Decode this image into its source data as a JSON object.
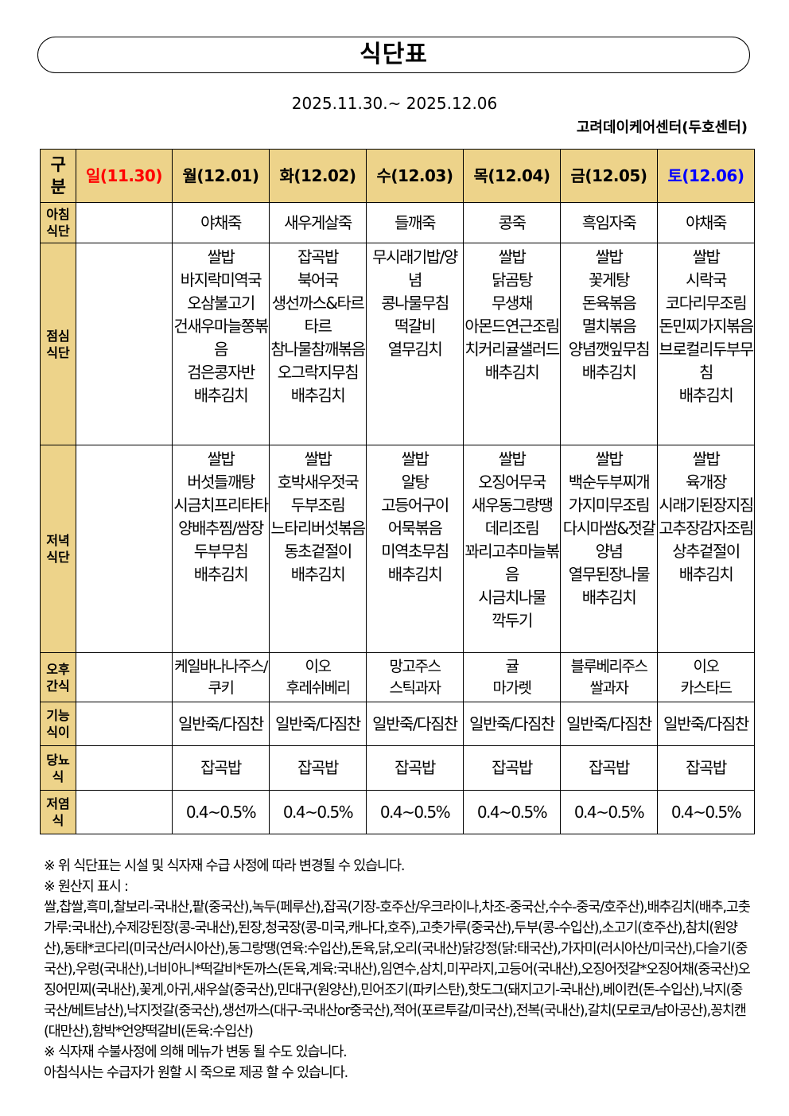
{
  "title": "식단표",
  "period": "2025.11.30.~ 2025.12.06",
  "center": "고려데이케어센터(두호센터)",
  "header": {
    "label": "구\n분",
    "days": [
      {
        "label": "일(11.30)",
        "color": "#ff0000"
      },
      {
        "label": "월(12.01)",
        "color": "#000000"
      },
      {
        "label": "화(12.02)",
        "color": "#000000"
      },
      {
        "label": "수(12.03)",
        "color": "#000000"
      },
      {
        "label": "목(12.04)",
        "color": "#000000"
      },
      {
        "label": "금(12.05)",
        "color": "#000000"
      },
      {
        "label": "토(12.06)",
        "color": "#0000ff"
      }
    ]
  },
  "rows": [
    {
      "label": "아침\n식단",
      "cells": [
        "",
        "야채죽",
        "새우게살죽",
        "들깨죽",
        "콩죽",
        "흑임자죽",
        "야채죽"
      ]
    },
    {
      "label": "점심\n식단",
      "cells": [
        "",
        "쌀밥\n바지락미역국\n오삼불고기\n건새우마늘쫑볶음\n검은콩자반\n배추김치",
        "잡곡밥\n북어국\n생선까스&타르타르\n참나물참깨볶음\n오그락지무침\n배추김치",
        "무시래기밥/양념\n콩나물무침\n떡갈비\n열무김치",
        "쌀밥\n닭곰탕\n무생채\n아몬드연근조림\n치커리귤샐러드\n배추김치",
        "쌀밥\n꽃게탕\n돈육볶음\n멸치볶음\n양념깻잎무침\n배추김치",
        "쌀밥\n시락국\n코다리무조림\n돈민찌가지볶음\n브로컬리두부무침\n배추김치"
      ]
    },
    {
      "label": "저녁\n식단",
      "cells": [
        "",
        "쌀밥\n버섯들깨탕\n시금치프리타타\n양배추찜/쌈장\n두부무침\n배추김치",
        "쌀밥\n호박새우젓국\n두부조림\n느타리버섯볶음\n동초겉절이\n배추김치",
        "쌀밥\n알탕\n고등어구이\n어묵볶음\n미역초무침\n배추김치",
        "쌀밥\n오징어무국\n새우동그랑땡\n데리조림\n꽈리고추마늘볶음\n시금치나물\n깍두기",
        "쌀밥\n백순두부찌개\n가지미무조림\n다시마쌈&젓갈양념\n열무된장나물\n배추김치",
        "쌀밥\n육개장\n시래기된장지짐\n고추장감자조림\n상추겉절이\n배추김치"
      ]
    },
    {
      "label": "오후\n간식",
      "cells": [
        "",
        "케일바나나주스/쿠키",
        "이오\n후레쉬베리",
        "망고주스\n스틱과자",
        "귤\n마가렛",
        "블루베리주스\n쌀과자",
        "이오\n카스타드"
      ]
    },
    {
      "label": "기능\n식이",
      "cells": [
        "",
        "일반죽/다짐찬",
        "일반죽/다짐찬",
        "일반죽/다짐찬",
        "일반죽/다짐찬",
        "일반죽/다짐찬",
        "일반죽/다짐찬"
      ]
    },
    {
      "label": "당뇨\n식",
      "cells": [
        "",
        "잡곡밥",
        "잡곡밥",
        "잡곡밥",
        "잡곡밥",
        "잡곡밥",
        "잡곡밥"
      ]
    },
    {
      "label": "저염\n식",
      "cells": [
        "",
        "0.4~0.5%",
        "0.4~0.5%",
        "0.4~0.5%",
        "0.4~0.5%",
        "0.4~0.5%",
        "0.4~0.5%"
      ]
    }
  ],
  "notes": [
    "※ 위 식단표는 시설 및 식자재 수급 사정에 따라 변경될 수 있습니다.",
    "※ 원산지 표시 :",
    "쌀,찹쌀,흑미,찰보리-국내산,팥(중국산),녹두(페루산),잡곡(기장-호주산/우크라이나,차조-중국산,수수-중국/호주산),배추김치(배추,고춧가루:국내산),수제강된장(콩-국내산),된장,청국장(콩-미국,캐나다,호주),고춧가루(중국산),두부(콩-수입산),소고기(호주산),참치(원양산),동태*코다리(미국산/러시아산),동그랑땡(연육:수입산),돈육,닭,오리(국내산)닭강정(닭:태국산),가자미(러시아산/미국산),다슬기(중국산),우렁(국내산),너비아니*떡갈비*돈까스(돈육,계육:국내산),임연수,삼치,미꾸라지,고등어(국내산),오징어젓갈*오징어채(중국산)오징어민찌(국내산),꽃게,아귀,새우살(중국산),민대구(원양산),민어조기(파키스탄),핫도그(돼지고기-국내산),베이컨(돈-수입산),낙지(중국산/베트남산),낙지젓갈(중국산),생선까스(대구-국내산or중국산),적어(포르투갈/미국산),전복(국내산),갈치(모로코/남아공산),꽁치캔(대만산),함박*언양떡갈비(돈육:수입산)",
    "※ 식자재 수불사정에 의해 메뉴가 변동 될 수도 있습니다.",
    "아침식사는 수급자가 원할 시 죽으로 제공 할 수 있습니다."
  ]
}
